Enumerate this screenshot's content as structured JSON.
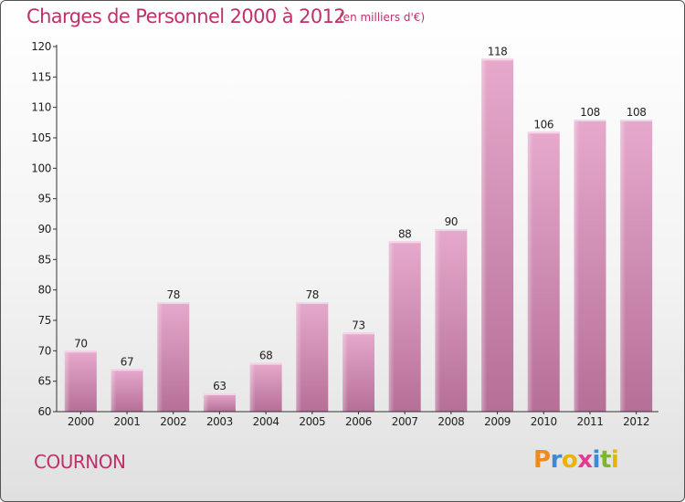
{
  "title": "Charges de Personnel 2000 à 2012",
  "subtitle": "(en milliers d'€)",
  "commune": "COURNON",
  "brand": {
    "letters": [
      "P",
      "r",
      "o",
      "x",
      "i",
      "t",
      "i"
    ],
    "colors": [
      "#f08a1c",
      "#3b8ad6",
      "#e8b400",
      "#e23b8f",
      "#3b8ad6",
      "#78b82a",
      "#e8b400"
    ]
  },
  "chart_data": {
    "type": "bar",
    "categories": [
      "2000",
      "2001",
      "2002",
      "2003",
      "2004",
      "2005",
      "2006",
      "2007",
      "2008",
      "2009",
      "2010",
      "2011",
      "2012"
    ],
    "values": [
      70,
      67,
      78,
      63,
      68,
      78,
      73,
      88,
      90,
      118,
      106,
      108,
      108
    ],
    "ylim": [
      60,
      120
    ],
    "yticks": [
      60,
      65,
      70,
      75,
      80,
      85,
      90,
      95,
      100,
      105,
      110,
      115,
      120
    ],
    "bar_color": "#c97fa6",
    "grid": false
  }
}
